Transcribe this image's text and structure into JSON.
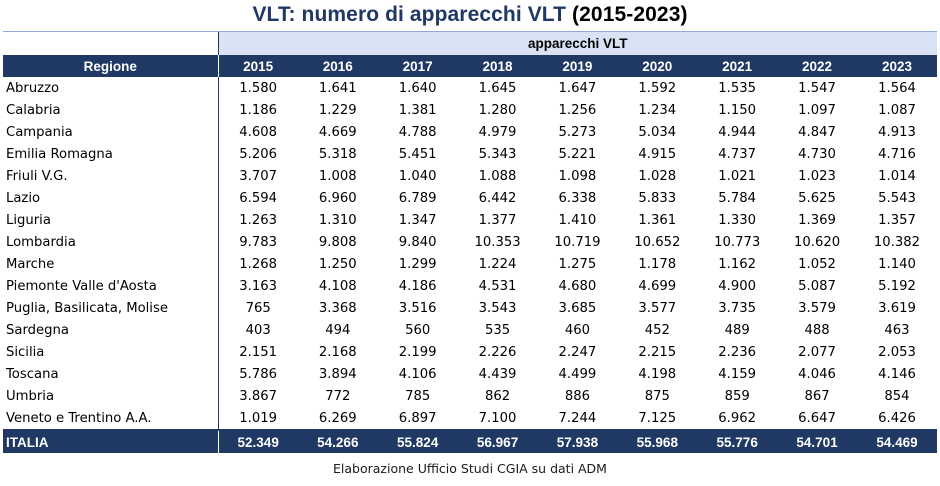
{
  "title": {
    "main": "VLT: numero di apparecchi VLT",
    "years": "(2015-2023)"
  },
  "table": {
    "group_header": "apparecchi VLT",
    "region_header": "Regione",
    "years": [
      "2015",
      "2016",
      "2017",
      "2018",
      "2019",
      "2020",
      "2021",
      "2022",
      "2023"
    ],
    "rows": [
      {
        "region": "Abruzzo",
        "values": [
          "1.580",
          "1.641",
          "1.640",
          "1.645",
          "1.647",
          "1.592",
          "1.535",
          "1.547",
          "1.564"
        ]
      },
      {
        "region": "Calabria",
        "values": [
          "1.186",
          "1.229",
          "1.381",
          "1.280",
          "1.256",
          "1.234",
          "1.150",
          "1.097",
          "1.087"
        ]
      },
      {
        "region": "Campania",
        "values": [
          "4.608",
          "4.669",
          "4.788",
          "4.979",
          "5.273",
          "5.034",
          "4.944",
          "4.847",
          "4.913"
        ]
      },
      {
        "region": "Emilia Romagna",
        "values": [
          "5.206",
          "5.318",
          "5.451",
          "5.343",
          "5.221",
          "4.915",
          "4.737",
          "4.730",
          "4.716"
        ]
      },
      {
        "region": "Friuli V.G.",
        "values": [
          "3.707",
          "1.008",
          "1.040",
          "1.088",
          "1.098",
          "1.028",
          "1.021",
          "1.023",
          "1.014"
        ]
      },
      {
        "region": "Lazio",
        "values": [
          "6.594",
          "6.960",
          "6.789",
          "6.442",
          "6.338",
          "5.833",
          "5.784",
          "5.625",
          "5.543"
        ]
      },
      {
        "region": "Liguria",
        "values": [
          "1.263",
          "1.310",
          "1.347",
          "1.377",
          "1.410",
          "1.361",
          "1.330",
          "1.369",
          "1.357"
        ]
      },
      {
        "region": "Lombardia",
        "values": [
          "9.783",
          "9.808",
          "9.840",
          "10.353",
          "10.719",
          "10.652",
          "10.773",
          "10.620",
          "10.382"
        ]
      },
      {
        "region": "Marche",
        "values": [
          "1.268",
          "1.250",
          "1.299",
          "1.224",
          "1.275",
          "1.178",
          "1.162",
          "1.052",
          "1.140"
        ]
      },
      {
        "region": "Piemonte Valle d'Aosta",
        "values": [
          "3.163",
          "4.108",
          "4.186",
          "4.531",
          "4.680",
          "4.699",
          "4.900",
          "5.087",
          "5.192"
        ]
      },
      {
        "region": "Puglia, Basilicata, Molise",
        "values": [
          "765",
          "3.368",
          "3.516",
          "3.543",
          "3.685",
          "3.577",
          "3.735",
          "3.579",
          "3.619"
        ]
      },
      {
        "region": "Sardegna",
        "values": [
          "403",
          "494",
          "560",
          "535",
          "460",
          "452",
          "489",
          "488",
          "463"
        ]
      },
      {
        "region": "Sicilia",
        "values": [
          "2.151",
          "2.168",
          "2.199",
          "2.226",
          "2.247",
          "2.215",
          "2.236",
          "2.077",
          "2.053"
        ]
      },
      {
        "region": "Toscana",
        "values": [
          "5.786",
          "3.894",
          "4.106",
          "4.439",
          "4.499",
          "4.198",
          "4.159",
          "4.046",
          "4.146"
        ]
      },
      {
        "region": "Umbria",
        "values": [
          "3.867",
          "772",
          "785",
          "862",
          "886",
          "875",
          "859",
          "867",
          "854"
        ]
      },
      {
        "region": "Veneto e Trentino A.A.",
        "values": [
          "1.019",
          "6.269",
          "6.897",
          "7.100",
          "7.244",
          "7.125",
          "6.962",
          "6.647",
          "6.426"
        ]
      }
    ],
    "total": {
      "region": "ITALIA",
      "values": [
        "52.349",
        "54.266",
        "55.824",
        "56.967",
        "57.938",
        "55.968",
        "55.776",
        "54.701",
        "54.469"
      ]
    }
  },
  "source_note": "Elaborazione Ufficio Studi CGIA su dati ADM",
  "colors": {
    "header_dark": "#1f3864",
    "header_light": "#dae3f3",
    "title": "#1f3864"
  }
}
